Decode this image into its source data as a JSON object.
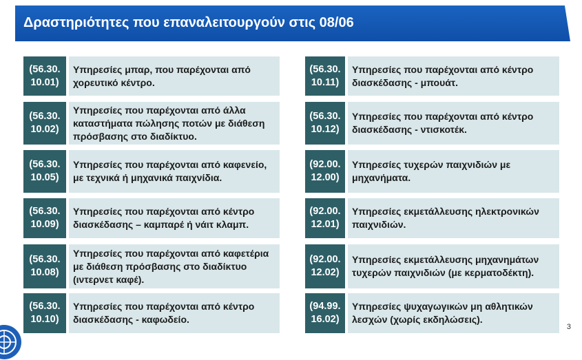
{
  "header": {
    "title": "Δραστηριότητες που επαναλειτουργούν στις 08/06"
  },
  "left_column": [
    {
      "code": "(56.30.\n10.01)",
      "description": "Υπηρεσίες μπαρ, που παρέχονται από χορευτικό κέντρο."
    },
    {
      "code": "(56.30.\n10.02)",
      "description": "Υπηρεσίες που παρέχονται από άλλα καταστήματα πώλησης ποτών με διάθεση πρόσβασης στο διαδίκτυο."
    },
    {
      "code": "(56.30.\n10.05)",
      "description": "Υπηρεσίες που παρέχονται από καφενείο, με τεχνικά ή μηχανικά παιχνίδια."
    },
    {
      "code": "(56.30.\n10.09)",
      "description": "Υπηρεσίες που παρέχονται από κέντρο διασκέδασης – καμπαρέ ή νάιτ κλαμπ."
    },
    {
      "code": "(56.30.\n10.08)",
      "description": "Υπηρεσίες που παρέχονται από καφετέρια με διάθεση πρόσβασης στο διαδίκτυο (ιντερνετ καφέ)."
    },
    {
      "code": "(56.30.\n10.10)",
      "description": "Υπηρεσίες που παρέχονται από κέντρο διασκέδασης - καφωδείο."
    }
  ],
  "right_column": [
    {
      "code": "(56.30.\n10.11)",
      "description": "Υπηρεσίες που παρέχονται από κέντρο διασκέδασης - μπουάτ."
    },
    {
      "code": "(56.30.\n10.12)",
      "description": "Υπηρεσίες που παρέχονται από κέντρο διασκέδασης - ντισκοτέκ."
    },
    {
      "code": "(92.00.\n12.00)",
      "description": "Υπηρεσίες τυχερών παιχνιδιών με μηχανήματα."
    },
    {
      "code": "(92.00.\n12.01)",
      "description": "Υπηρεσίες εκμετάλλευσης ηλεκτρονικών παιχνιδιών."
    },
    {
      "code": "(92.00.\n12.02)",
      "description": "Υπηρεσίες εκμετάλλευσης μηχανημάτων τυχερών παιχνιδιών (με κερματοδέκτη)."
    },
    {
      "code": "(94.99.\n16.02)",
      "description": "Υπηρεσίες ψυχαγωγικών μη αθλητικών λεσχών (χωρίς εκδηλώσεις)."
    }
  ],
  "footer": {
    "page_number": "3"
  },
  "colors": {
    "title_bar": "#1059b4",
    "code_box": "#2f5f66",
    "desc_box": "#d9e7ea"
  }
}
